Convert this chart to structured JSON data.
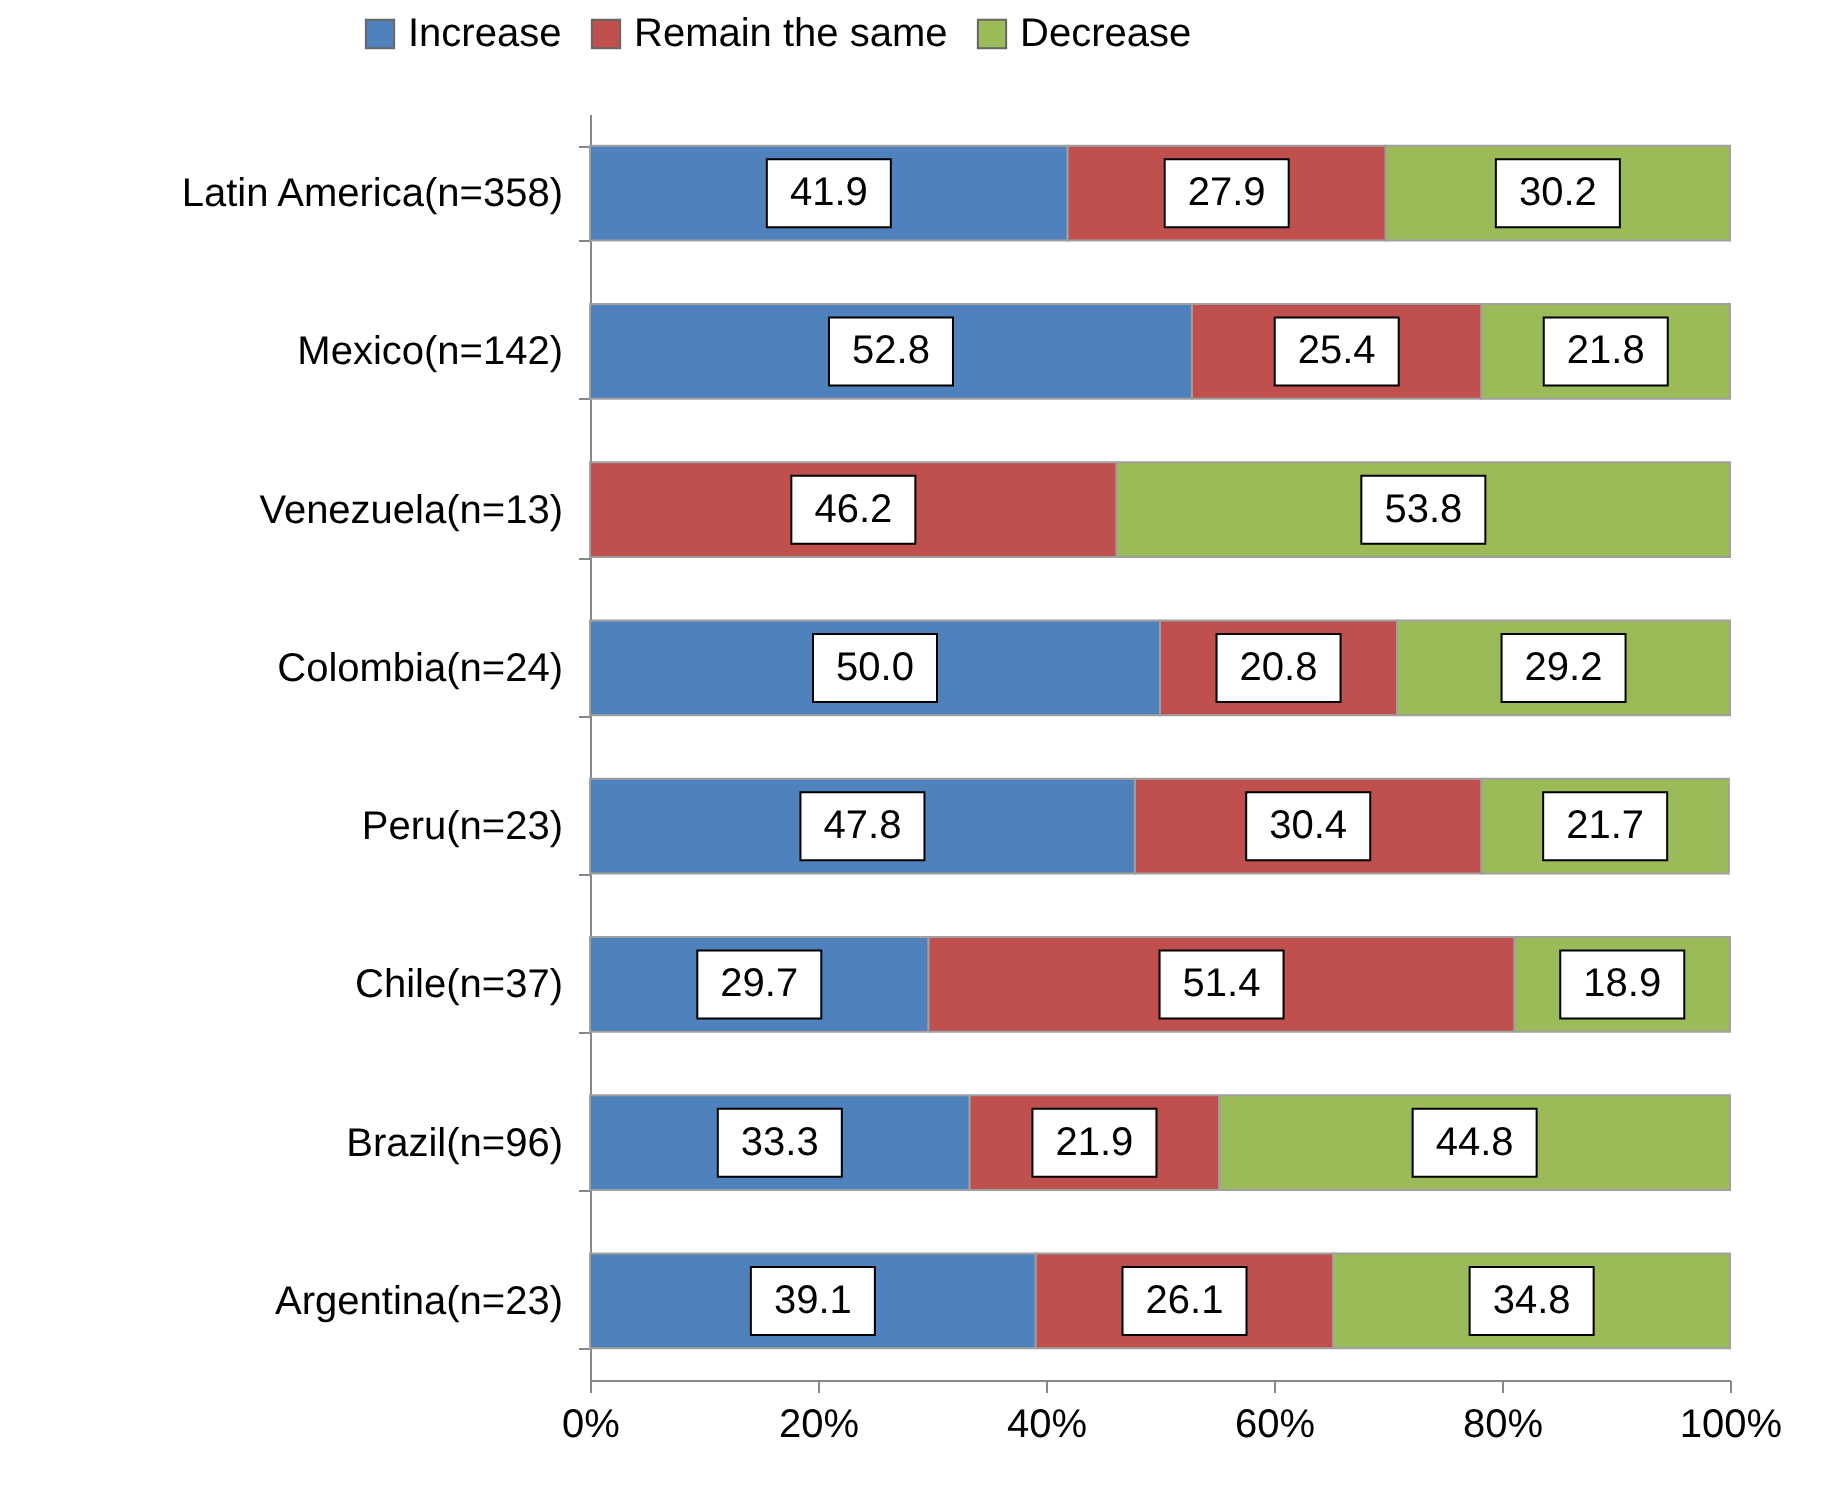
{
  "chart_data": {
    "type": "bar",
    "orientation": "horizontal",
    "stacked": true,
    "legend": "top",
    "grid": false,
    "categories": [
      "Latin America(n=358)",
      "Mexico(n=142)",
      "Venezuela(n=13)",
      "Colombia(n=24)",
      "Peru(n=23)",
      "Chile(n=37)",
      "Brazil(n=96)",
      "Argentina(n=23)"
    ],
    "xlim": [
      0,
      100
    ],
    "xticks": [
      {
        "value": 0,
        "label": "0%"
      },
      {
        "value": 20,
        "label": "20%"
      },
      {
        "value": 40,
        "label": "40%"
      },
      {
        "value": 60,
        "label": "60%"
      },
      {
        "value": 80,
        "label": "80%"
      },
      {
        "value": 100,
        "label": "100%"
      }
    ],
    "series": [
      {
        "name": "Increase",
        "color": "#4f81bd",
        "values": [
          41.9,
          52.8,
          null,
          50.0,
          47.8,
          29.7,
          33.3,
          39.1
        ],
        "value_labels": [
          "41.9",
          "52.8",
          null,
          "50.0",
          "47.8",
          "29.7",
          "33.3",
          "39.1"
        ]
      },
      {
        "name": "Remain the same",
        "color": "#c0504d",
        "values": [
          27.9,
          25.4,
          46.2,
          20.8,
          30.4,
          51.4,
          21.9,
          26.1
        ],
        "value_labels": [
          "27.9",
          "25.4",
          "46.2",
          "20.8",
          "30.4",
          "51.4",
          "21.9",
          "26.1"
        ]
      },
      {
        "name": "Decrease",
        "color": "#9bbb59",
        "values": [
          30.2,
          21.8,
          53.8,
          29.2,
          21.7,
          18.9,
          44.8,
          34.8
        ],
        "value_labels": [
          "30.2",
          "21.8",
          "53.8",
          "29.2",
          "21.7",
          "18.9",
          "44.8",
          "34.8"
        ]
      }
    ]
  }
}
